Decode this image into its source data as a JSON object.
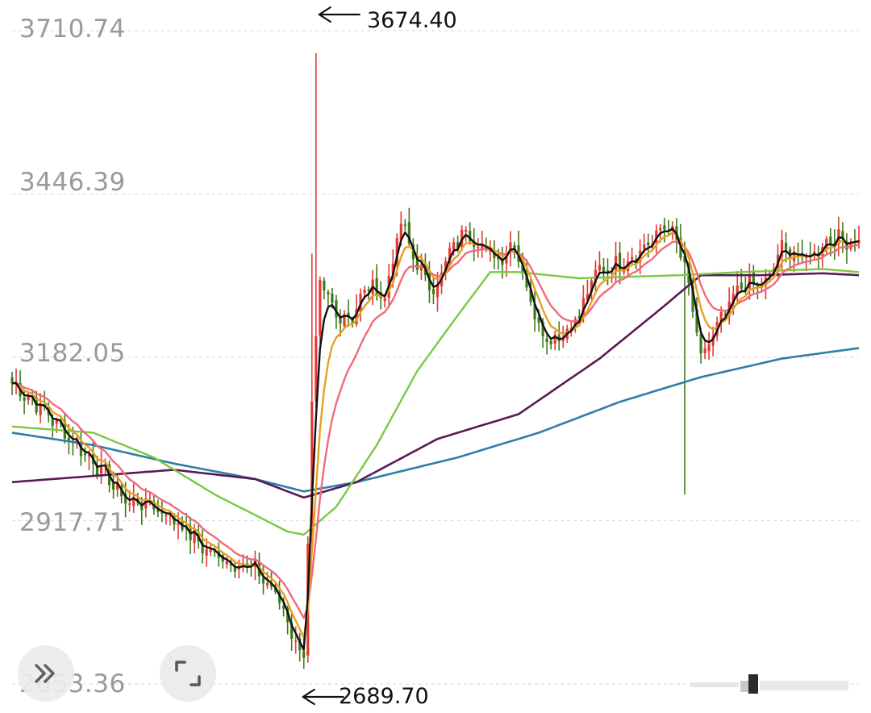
{
  "chart_data": {
    "type": "candlestick",
    "y_axis": {
      "tick_labels": [
        "3710.74",
        "3446.39",
        "3182.05",
        "2917.71",
        "2653.36"
      ],
      "ylim": [
        2653.36,
        3710.74
      ],
      "grid": true
    },
    "annotations": {
      "high_label": "3674.40",
      "low_label": "2689.70"
    },
    "series_colors": {
      "up": "#e53935",
      "down": "#3d7a1c",
      "ma_short": "#111111",
      "ma_10": "#e8a020",
      "ma_20": "#ef6b7b",
      "ma_60": "#7ac943",
      "ma_120": "#5a1a55",
      "ma_250": "#2f7fa6"
    },
    "candle_count": 210,
    "close_keyframes": [
      [
        0,
        3140
      ],
      [
        8,
        3095
      ],
      [
        16,
        3040
      ],
      [
        22,
        3000
      ],
      [
        28,
        2950
      ],
      [
        34,
        2945
      ],
      [
        40,
        2920
      ],
      [
        48,
        2870
      ],
      [
        54,
        2850
      ],
      [
        60,
        2840
      ],
      [
        66,
        2790
      ],
      [
        70,
        2720
      ],
      [
        72,
        2700
      ],
      [
        74,
        3100
      ],
      [
        76,
        3300
      ],
      [
        80,
        3250
      ],
      [
        84,
        3250
      ],
      [
        88,
        3300
      ],
      [
        92,
        3280
      ],
      [
        96,
        3400
      ],
      [
        100,
        3330
      ],
      [
        104,
        3290
      ],
      [
        108,
        3350
      ],
      [
        112,
        3390
      ],
      [
        116,
        3360
      ],
      [
        120,
        3340
      ],
      [
        124,
        3370
      ],
      [
        128,
        3270
      ],
      [
        132,
        3210
      ],
      [
        136,
        3220
      ],
      [
        140,
        3250
      ],
      [
        144,
        3320
      ],
      [
        148,
        3330
      ],
      [
        152,
        3340
      ],
      [
        158,
        3370
      ],
      [
        162,
        3400
      ],
      [
        166,
        3330
      ],
      [
        170,
        3180
      ],
      [
        174,
        3230
      ],
      [
        180,
        3300
      ],
      [
        186,
        3300
      ],
      [
        190,
        3360
      ],
      [
        196,
        3340
      ],
      [
        202,
        3375
      ],
      [
        209,
        3370
      ]
    ],
    "ma_keyframes": {
      "ma_60": [
        [
          0,
          3070
        ],
        [
          20,
          3060
        ],
        [
          35,
          3020
        ],
        [
          50,
          2960
        ],
        [
          68,
          2900
        ],
        [
          72,
          2895
        ],
        [
          80,
          2940
        ],
        [
          90,
          3040
        ],
        [
          100,
          3160
        ],
        [
          110,
          3250
        ],
        [
          118,
          3320
        ],
        [
          125,
          3320
        ],
        [
          140,
          3310
        ],
        [
          165,
          3315
        ],
        [
          180,
          3320
        ],
        [
          200,
          3325
        ],
        [
          209,
          3320
        ]
      ],
      "ma_120": [
        [
          0,
          2980
        ],
        [
          20,
          2990
        ],
        [
          40,
          3000
        ],
        [
          60,
          2985
        ],
        [
          72,
          2955
        ],
        [
          85,
          2980
        ],
        [
          105,
          3050
        ],
        [
          125,
          3090
        ],
        [
          145,
          3180
        ],
        [
          160,
          3260
        ],
        [
          170,
          3315
        ],
        [
          185,
          3315
        ],
        [
          200,
          3318
        ],
        [
          209,
          3315
        ]
      ],
      "ma_250": [
        [
          0,
          3060
        ],
        [
          20,
          3040
        ],
        [
          40,
          3010
        ],
        [
          60,
          2985
        ],
        [
          72,
          2965
        ],
        [
          85,
          2980
        ],
        [
          110,
          3020
        ],
        [
          130,
          3060
        ],
        [
          150,
          3110
        ],
        [
          170,
          3150
        ],
        [
          190,
          3180
        ],
        [
          209,
          3197
        ]
      ]
    }
  }
}
